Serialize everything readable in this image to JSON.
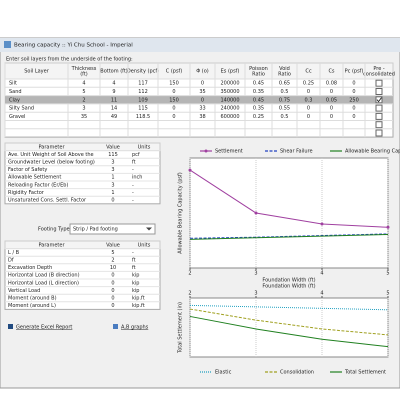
{
  "window": {
    "title": "Bearing capacity :: Yi Chu School - Imperial"
  },
  "instruction": "Enter soil layers from the underside of the footing:",
  "soil_table": {
    "columns": [
      [
        "Soil Layer"
      ],
      [
        "Thickness",
        "(ft)"
      ],
      [
        "Bottom (ft)"
      ],
      [
        "Density (pcf)"
      ],
      [
        "C (psf)"
      ],
      [
        "Φ (o)"
      ],
      [
        "Es (psf)"
      ],
      [
        "Poisson",
        "Ratio"
      ],
      [
        "Void",
        "Ratio"
      ],
      [
        "Cc"
      ],
      [
        "Cs"
      ],
      [
        "Pc (psf)"
      ],
      [
        "Pre -",
        "consolidated"
      ]
    ],
    "rows": [
      [
        "Silt",
        4,
        4,
        117,
        150,
        0,
        200000,
        0.45,
        0.65,
        0.25,
        0.08,
        0
      ],
      [
        "Sand",
        5,
        9,
        112,
        0,
        35,
        350000,
        0.35,
        0.5,
        0,
        0,
        0
      ],
      [
        "Clay",
        2,
        11,
        109,
        150,
        0,
        140000,
        0.45,
        0.75,
        0.3,
        0.05,
        250
      ],
      [
        "Silty Sand",
        3,
        14,
        115,
        0,
        33,
        240000,
        0.35,
        0.55,
        0,
        0,
        0
      ],
      [
        "Gravel",
        35,
        49,
        118.5,
        0,
        38,
        600000,
        0.25,
        0.5,
        0,
        0,
        0
      ]
    ],
    "pre_consolidated": [
      false,
      false,
      true,
      false,
      false
    ],
    "selected_row": 2
  },
  "params_1": {
    "columns": [
      "Parameter",
      "Value",
      "Units"
    ],
    "rows": [
      [
        "Ave. Unit Weight of Soil Above the",
        115,
        "pcf"
      ],
      [
        "Groundwater Level (below footing)",
        3,
        "ft"
      ],
      [
        "Factor of Safety",
        3,
        "-"
      ],
      [
        "Allowable Settlement",
        1,
        "inch"
      ],
      [
        "Reloading Factor (Er/Eb)",
        3,
        "-"
      ],
      [
        "Rigidity Factor",
        1,
        "-"
      ],
      [
        "Unsaturated Cons. Settl. Factor",
        0,
        "-"
      ]
    ]
  },
  "footing": {
    "label": "Footing Type:",
    "value": "Strip / Pad footing"
  },
  "params_2": {
    "columns": [
      "Parameter",
      "Value",
      "Units"
    ],
    "rows": [
      [
        "L / B",
        5,
        "-"
      ],
      [
        "Df",
        2,
        "ft"
      ],
      [
        "Excavation Depth",
        10,
        "ft"
      ],
      [
        "Horizontal Load (B direction)",
        0,
        "kip"
      ],
      [
        "Horizontal Load (L direction)",
        0,
        "kip"
      ],
      [
        "Vertical Load",
        0,
        "kip"
      ],
      [
        "Moment (around B)",
        0,
        "kip.ft"
      ],
      [
        "Moment (around L)",
        0,
        "kip.ft"
      ]
    ]
  },
  "links": [
    "Generate Excel Report",
    "A,B graphs"
  ],
  "chart_data": [
    {
      "type": "line",
      "y_label": "Allowable Bearing Capacity (psf)",
      "x_label": "Foundation Width (ft)",
      "x": [
        2,
        3,
        4,
        5
      ],
      "xlim": [
        2,
        5
      ],
      "xticks": [
        2,
        3,
        4,
        5
      ],
      "ylim": [
        0,
        10000
      ],
      "x_axis": "bottom",
      "legend": "top",
      "grid": true,
      "series": [
        {
          "name": "Settlement",
          "color": "#a040a0",
          "dash": "solid",
          "marker": "circle",
          "values": [
            8900,
            5000,
            4000,
            3700
          ]
        },
        {
          "name": "Shear Failure",
          "color": "#2040c0",
          "dash": "dashed",
          "values": [
            2700,
            2800,
            2950,
            3100
          ]
        },
        {
          "name": "Allowable Bearing Capacity",
          "color": "#208020",
          "dash": "solid",
          "values": [
            2600,
            2750,
            2900,
            3050
          ]
        }
      ]
    },
    {
      "type": "line",
      "y_label": "Total Settlement (in)",
      "x_label": "Foundation Width (ft)",
      "x": [
        2,
        3,
        4,
        5
      ],
      "xlim": [
        2,
        5
      ],
      "xticks": [
        2,
        3,
        4,
        5
      ],
      "ylim": [
        -0.8,
        0
      ],
      "x_axis": "top",
      "legend": "bottom",
      "grid": true,
      "series": [
        {
          "name": "Elastic",
          "color": "#20a0c0",
          "dash": "dotted",
          "values": [
            -0.1,
            -0.12,
            -0.14,
            -0.16
          ]
        },
        {
          "name": "Consolidation",
          "color": "#a0a020",
          "dash": "dashed",
          "values": [
            -0.15,
            -0.3,
            -0.42,
            -0.5
          ]
        },
        {
          "name": "Total Settlement",
          "color": "#208020",
          "dash": "solid",
          "values": [
            -0.25,
            -0.42,
            -0.56,
            -0.66
          ]
        }
      ]
    }
  ]
}
